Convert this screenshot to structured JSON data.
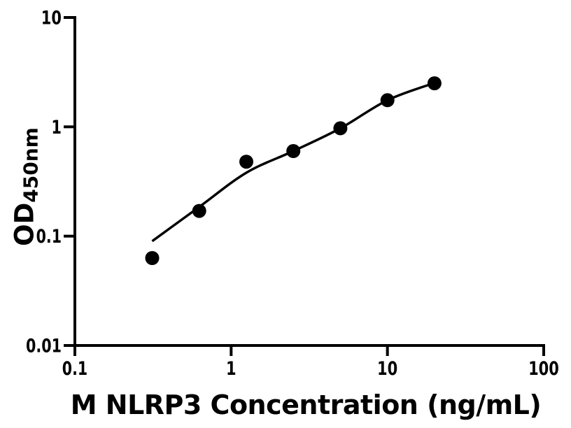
{
  "figure": {
    "background_color": "#ffffff",
    "axis_color": "#000000"
  },
  "chart_data": {
    "type": "scatter",
    "title": "",
    "xlabel": "M NLRP3 Concentration (ng/mL)",
    "ylabel": "OD",
    "ylabel_subscript": "450nm",
    "x_scale": "log",
    "y_scale": "log",
    "xlim": [
      0.1,
      100
    ],
    "ylim": [
      0.01,
      10
    ],
    "grid": false,
    "legend_position": "none",
    "x_ticks": [
      {
        "value": 0.1,
        "label": "0.1"
      },
      {
        "value": 1,
        "label": "1"
      },
      {
        "value": 10,
        "label": "10"
      },
      {
        "value": 100,
        "label": "100"
      }
    ],
    "y_ticks": [
      {
        "value": 0.01,
        "label": "0.01"
      },
      {
        "value": 0.1,
        "label": "0.1"
      },
      {
        "value": 1,
        "label": "1"
      },
      {
        "value": 10,
        "label": "10"
      }
    ],
    "series": [
      {
        "name": "standard-points",
        "marker": "filled-circle",
        "marker_color": "#000000",
        "points": [
          {
            "x": 0.3125,
            "y": 0.063
          },
          {
            "x": 0.625,
            "y": 0.17
          },
          {
            "x": 1.25,
            "y": 0.48
          },
          {
            "x": 2.5,
            "y": 0.6
          },
          {
            "x": 5,
            "y": 0.97
          },
          {
            "x": 10,
            "y": 1.75
          },
          {
            "x": 20,
            "y": 2.5
          }
        ]
      }
    ],
    "fit_curve": {
      "name": "standard-curve-fit",
      "line_color": "#000000",
      "samples": [
        {
          "x": 0.3125,
          "y": 0.09
        },
        {
          "x": 0.625,
          "y": 0.185
        },
        {
          "x": 1.25,
          "y": 0.38
        },
        {
          "x": 2.5,
          "y": 0.6
        },
        {
          "x": 5,
          "y": 0.97
        },
        {
          "x": 10,
          "y": 1.75
        },
        {
          "x": 20,
          "y": 2.52
        }
      ]
    }
  }
}
